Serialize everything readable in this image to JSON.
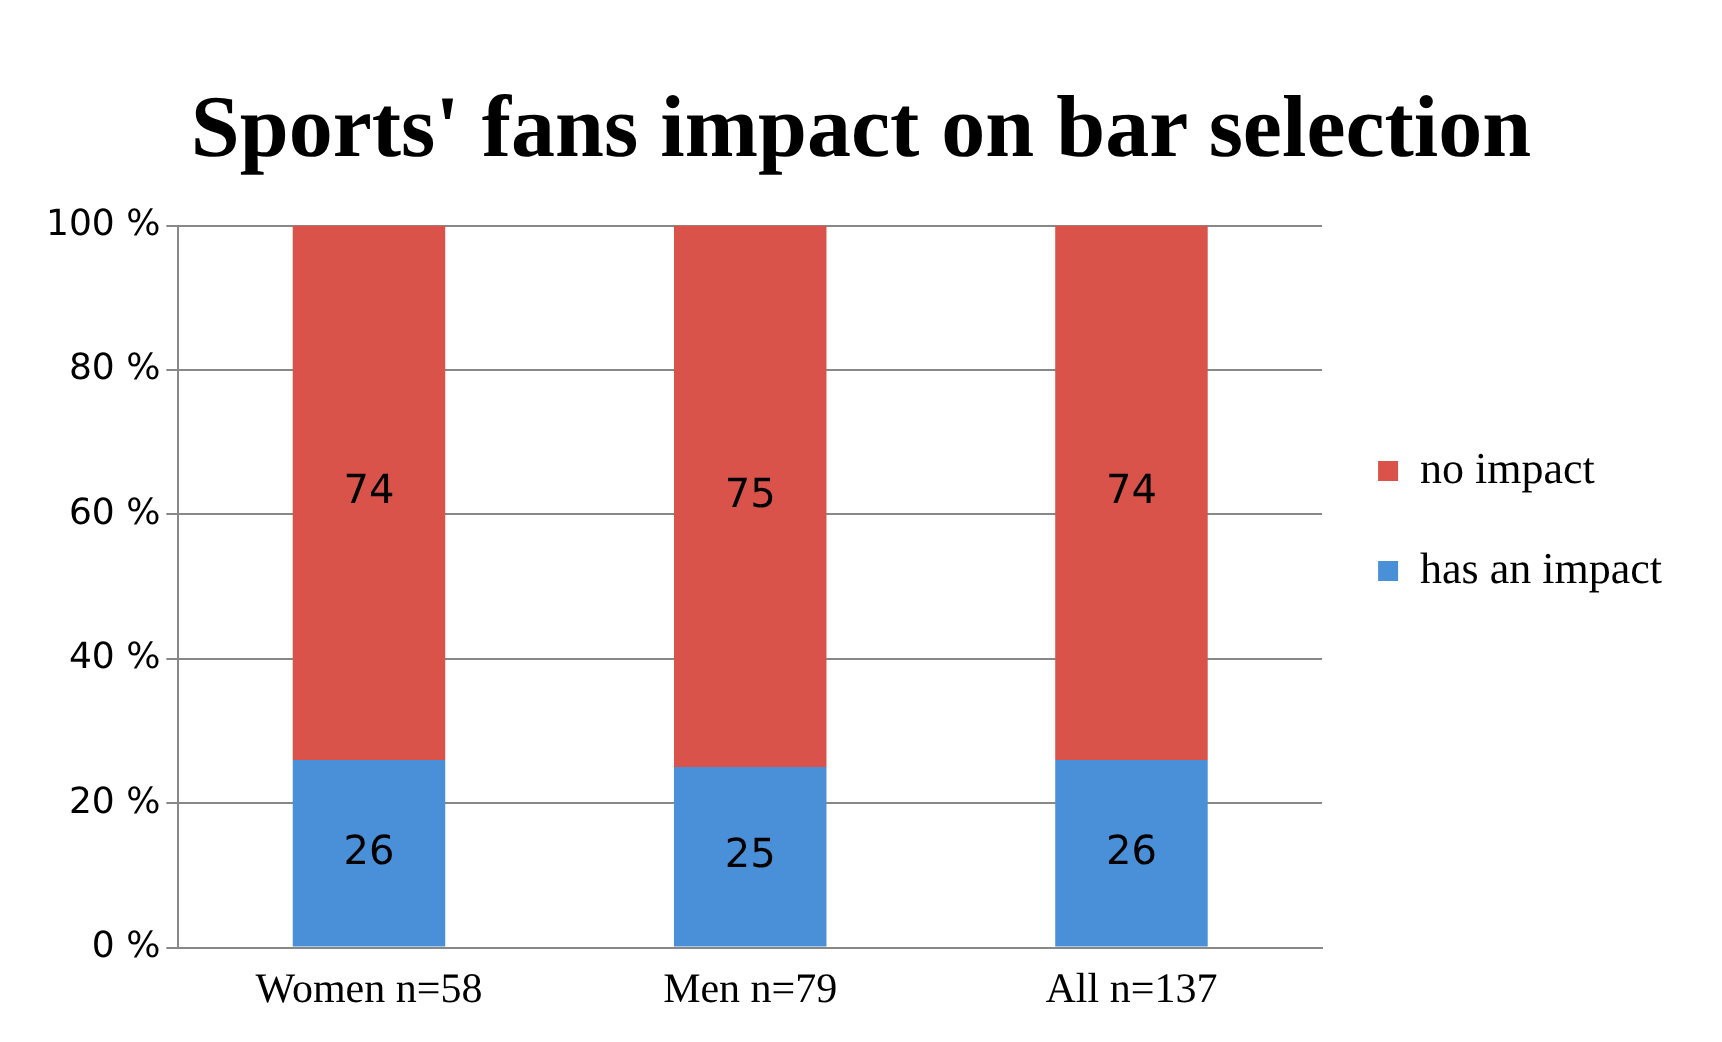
{
  "chart_data": {
    "type": "bar",
    "title": "Sports' fans impact on bar selection",
    "categories": [
      "Women n=58",
      "Men n=79",
      "All n=137"
    ],
    "series": [
      {
        "name": "has an impact",
        "color": "#4a90d9",
        "values": [
          26,
          25,
          26
        ]
      },
      {
        "name": "no impact",
        "color": "#d9534a",
        "values": [
          74,
          75,
          74
        ]
      }
    ],
    "stacked": true,
    "ylim": [
      0,
      100
    ],
    "yticks": [
      {
        "value": 0,
        "label": "0 %"
      },
      {
        "value": 20,
        "label": "20 %"
      },
      {
        "value": 40,
        "label": "40 %"
      },
      {
        "value": 60,
        "label": "60 %"
      },
      {
        "value": 80,
        "label": "80 %"
      },
      {
        "value": 100,
        "label": "100 %"
      }
    ],
    "grid": "y",
    "legend": "right",
    "data_labels": true
  }
}
